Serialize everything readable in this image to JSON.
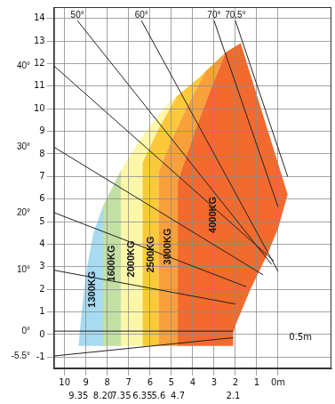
{
  "chart_data": {
    "type": "area",
    "xlim": [
      10.5,
      -2.5
    ],
    "xticks": [
      10,
      9,
      8,
      7,
      6,
      5,
      4,
      3,
      2,
      1,
      {
        "value": 0,
        "label": "0m"
      }
    ],
    "x2ticks": [
      9.35,
      {
        "value": 8.2,
        "label": "8.20"
      },
      7.35,
      6.35,
      5.6,
      4.7,
      2.1
    ],
    "ylim": [
      -1.5,
      14.5
    ],
    "yticks": [
      -1,
      0,
      1,
      2,
      3,
      4,
      5,
      6,
      7,
      8,
      9,
      10,
      11,
      12,
      13,
      14
    ],
    "grid": true,
    "series": [
      {
        "name": "1300KG",
        "color": "#a6dbf2",
        "x": [
          9.35,
          9.2,
          8.95,
          8.65,
          8.2,
          8.2
        ],
        "y": [
          -0.5,
          1,
          3,
          4.5,
          5.7,
          -0.5
        ],
        "label_at": [
          8.72,
          2.0
        ]
      },
      {
        "name": "1600KG",
        "color": "#c3e0a4",
        "x": [
          8.2,
          8.2,
          7.35,
          7.35
        ],
        "y": [
          -0.5,
          5.7,
          7.3,
          -0.5
        ],
        "label_at": [
          7.78,
          3.15
        ]
      },
      {
        "name": "2000KG",
        "color": "#fff7a8",
        "x": [
          7.35,
          7.35,
          6.5,
          5.2,
          4.75,
          5.6,
          6.35,
          6.35
        ],
        "y": [
          -0.5,
          7.3,
          8.6,
          10.2,
          10.55,
          9.1,
          7.6,
          -0.5
        ],
        "label_at": [
          6.85,
          3.35
        ]
      },
      {
        "name": "2500KG",
        "color": "#fcc93a",
        "x": [
          6.35,
          6.35,
          5.6,
          4.75,
          3.8,
          3.4,
          4.2,
          5.0,
          5.6,
          5.6
        ],
        "y": [
          -0.5,
          7.6,
          9.1,
          10.55,
          11.3,
          11.65,
          10.2,
          8.6,
          7.2,
          -0.5
        ],
        "label_at": [
          5.97,
          3.55
        ]
      },
      {
        "name": "3000KG",
        "color": "#f8a03a",
        "x": [
          5.6,
          5.6,
          5.0,
          4.2,
          3.4,
          2.45,
          3.1,
          3.9,
          4.7,
          4.7
        ],
        "y": [
          -0.5,
          7.2,
          8.6,
          10.2,
          11.65,
          12.5,
          11.0,
          9.0,
          6.8,
          -0.5
        ],
        "label_at": [
          5.15,
          3.9
        ]
      },
      {
        "name": "4000KG",
        "color": "#f26a2e",
        "x": [
          4.7,
          4.7,
          3.9,
          3.1,
          2.45,
          1.75,
          -0.45,
          0.0,
          0.5,
          1.3,
          2.0,
          2.1,
          2.1
        ],
        "y": [
          -0.5,
          6.8,
          9.0,
          11.0,
          12.5,
          12.9,
          6.2,
          4.7,
          3.55,
          2.0,
          0.4,
          0.1,
          -0.5
        ],
        "label_at": [
          3.05,
          5.3
        ]
      }
    ],
    "angle_lines": [
      {
        "label": "-5.5°",
        "x": [
          10.5,
          2.1
        ],
        "y": [
          -0.95,
          -0.14
        ]
      },
      {
        "label": "0°",
        "x": [
          10.5,
          2.1
        ],
        "y": [
          0.15,
          0.15
        ]
      },
      {
        "label": "10°",
        "x": [
          10.5,
          2.0
        ],
        "y": [
          2.85,
          1.35
        ]
      },
      {
        "label": "20°",
        "x": [
          10.5,
          1.5
        ],
        "y": [
          5.4,
          2.12
        ]
      },
      {
        "label": "30°",
        "x": [
          10.5,
          0.7
        ],
        "y": [
          8.3,
          2.64
        ]
      },
      {
        "label": "40°",
        "x": [
          10.5,
          0.2
        ],
        "y": [
          11.9,
          3.26
        ]
      },
      {
        "label": "50°",
        "x": [
          9.4,
          0.3
        ],
        "y": [
          13.9,
          3.1
        ]
      },
      {
        "label": "60°",
        "x": [
          6.4,
          0.0
        ],
        "y": [
          13.9,
          2.8
        ]
      },
      {
        "label": "70°",
        "x": [
          3.0,
          0.0
        ],
        "y": [
          13.9,
          5.65
        ]
      },
      {
        "label": "70.5°",
        "x": [
          2.0,
          -0.45
        ],
        "y": [
          13.9,
          6.99
        ]
      }
    ],
    "annotations": [
      {
        "text": "0.5m",
        "x": -1.05,
        "y": -0.15
      }
    ]
  }
}
